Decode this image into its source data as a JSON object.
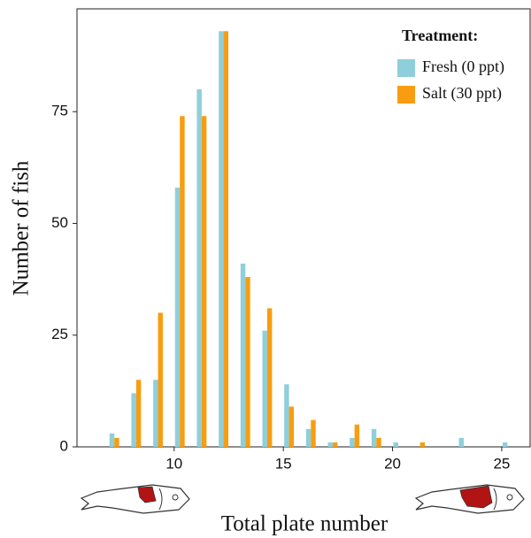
{
  "chart_data": {
    "type": "bar",
    "x_label": "Total plate number",
    "y_label": "Number of fish",
    "x": [
      7,
      8,
      9,
      10,
      11,
      12,
      13,
      14,
      15,
      16,
      17,
      18,
      19,
      20,
      21,
      22,
      23,
      24,
      25
    ],
    "series": [
      {
        "name": "Fresh (0 ppt)",
        "color": "#8ecfdb",
        "values": [
          3,
          12,
          15,
          58,
          80,
          93,
          41,
          26,
          14,
          4,
          1,
          2,
          4,
          1,
          0,
          0,
          2,
          0,
          1
        ]
      },
      {
        "name": "Salt (30 ppt)",
        "color": "#f89d0f",
        "values": [
          2,
          15,
          30,
          74,
          74,
          93,
          38,
          31,
          9,
          6,
          1,
          5,
          2,
          0,
          1,
          0,
          0,
          0,
          0
        ]
      }
    ],
    "legend_title": "Treatment:",
    "legend_position": "top-right",
    "xlim": [
      5.55,
      26.3
    ],
    "xticks": [
      10,
      15,
      20,
      25
    ],
    "ylim": [
      0,
      98
    ],
    "yticks": [
      0,
      25,
      50,
      75
    ],
    "grid": false
  }
}
